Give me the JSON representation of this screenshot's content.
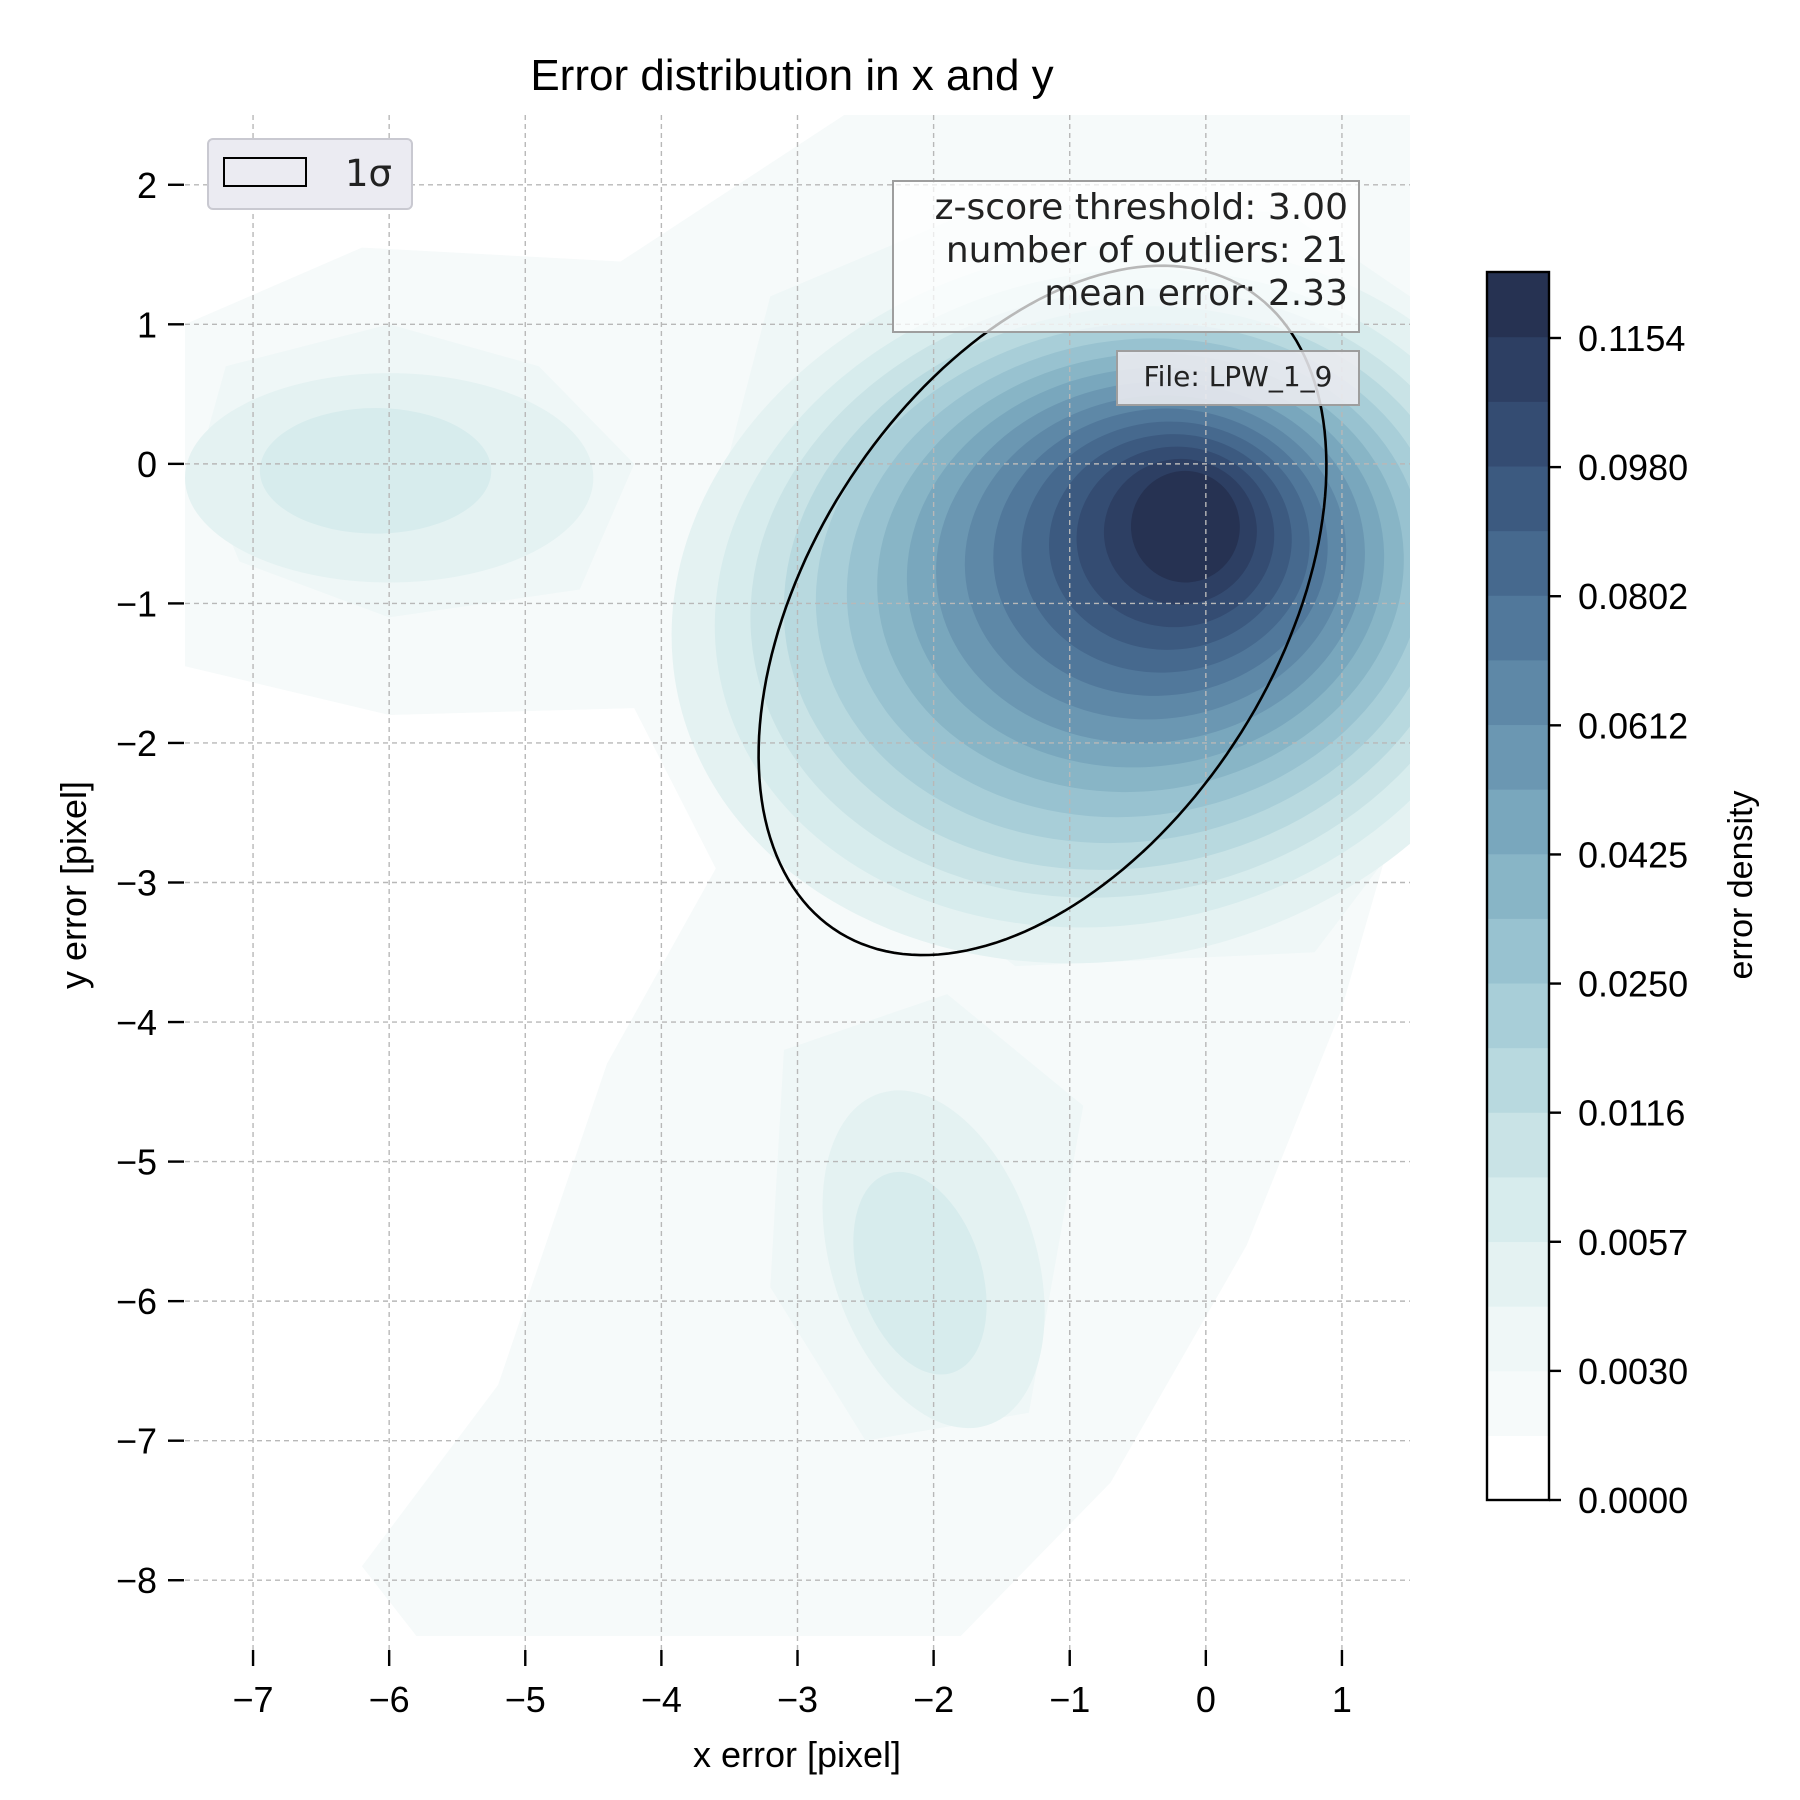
{
  "chart_data": {
    "type": "heatmap",
    "subtype": "kde-contour",
    "title": "Error distribution in x and y",
    "xlabel": "x error [pixel]",
    "ylabel": "y error [pixel]",
    "xlim": [
      -7.5,
      1.5
    ],
    "ylim": [
      -8.5,
      2.5
    ],
    "x_ticks": [
      -7,
      -6,
      -5,
      -4,
      -3,
      -2,
      -1,
      0,
      1
    ],
    "y_ticks": [
      2,
      1,
      0,
      -1,
      -2,
      -3,
      -4,
      -5,
      -6,
      -7,
      -8
    ],
    "grid": true,
    "colorbar": {
      "label": "error density",
      "tick_labels": [
        "0.1154",
        "0.0980",
        "0.0802",
        "0.0612",
        "0.0425",
        "0.0250",
        "0.0116",
        "0.0057",
        "0.0030",
        "0.0000"
      ],
      "levels": [
        0.0,
        0.0015,
        0.003,
        0.0045,
        0.0057,
        0.0087,
        0.0116,
        0.0183,
        0.025,
        0.0338,
        0.0425,
        0.0519,
        0.0612,
        0.0707,
        0.0802,
        0.0891,
        0.098,
        0.1067,
        0.1154,
        0.124
      ],
      "colors": [
        "#ffffff",
        "#f6fafa",
        "#eff7f7",
        "#e4f2f2",
        "#d7eced",
        "#c9e3e6",
        "#b8d9df",
        "#a8ced8",
        "#98c2d0",
        "#88b5c6",
        "#79a7bd",
        "#6b97b2",
        "#5e88a7",
        "#51789b",
        "#46698e",
        "#3c5a80",
        "#344c72",
        "#2d3f63",
        "#263252"
      ]
    },
    "density_peaks": [
      {
        "x": -0.15,
        "y": -0.45,
        "peak_density": 0.1154
      },
      {
        "x": -6.0,
        "y": -0.1,
        "peak_density": 0.008
      },
      {
        "x": -2.0,
        "y": -5.8,
        "peak_density": 0.006
      }
    ],
    "sigma_ellipse": {
      "center_x": -1.2,
      "center_y": -1.05,
      "semi_major": 2.75,
      "semi_minor": 1.7,
      "angle_deg": 56,
      "label": "1σ"
    },
    "legend": {
      "position": "top-left",
      "entries": [
        "1σ"
      ]
    },
    "annotations": {
      "stats_lines": [
        "z-score threshold: 3.00",
        "number of outliers: 21",
        "mean error: 2.33"
      ],
      "file_label": "File: LPW_1_9"
    }
  }
}
